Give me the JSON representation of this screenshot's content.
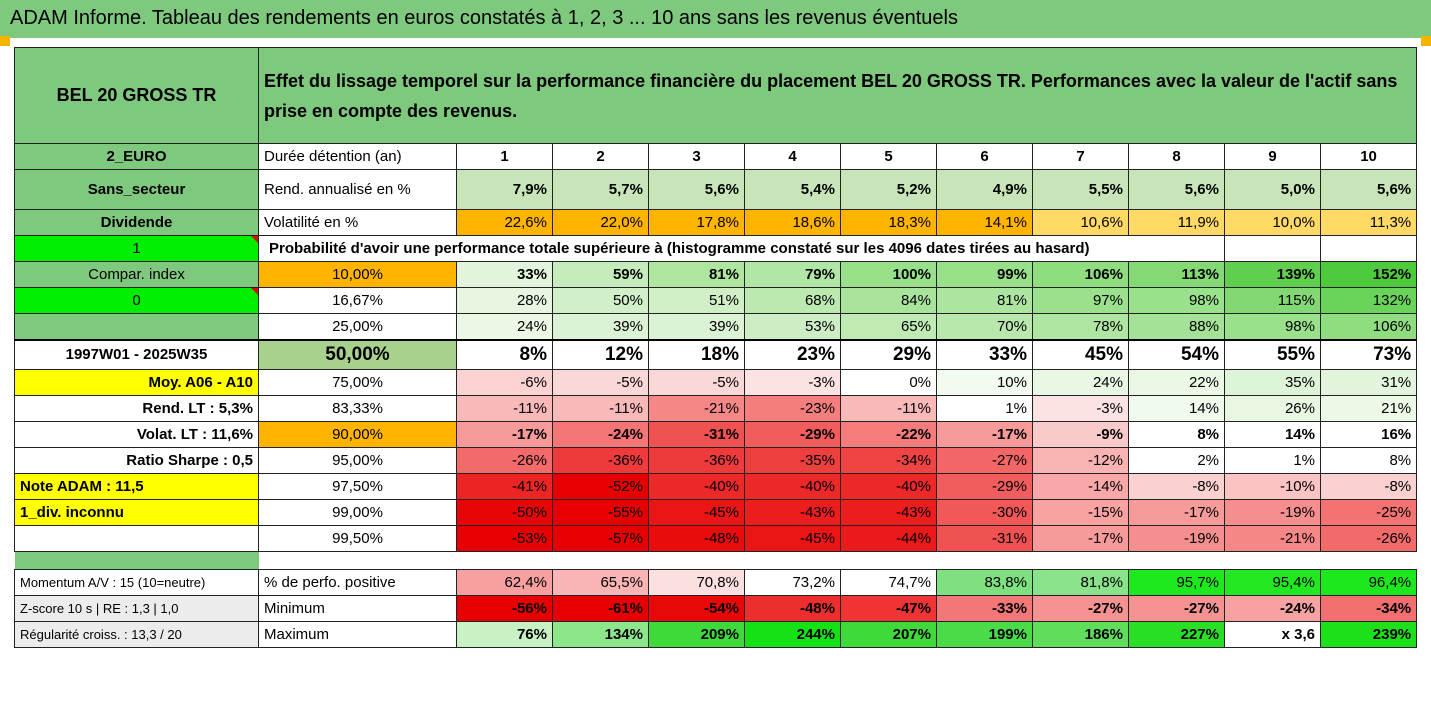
{
  "title": "ADAM Informe. Tableau des rendements en euros constatés à 1, 2, 3 ... 10 ans sans les revenus éventuels",
  "header": {
    "fund": "BEL 20 GROSS TR",
    "description": "Effet du lissage temporel sur la performance financière du placement BEL 20 GROSS TR. Performances avec la valeur de l'actif sans prise en compte des revenus."
  },
  "side": {
    "currency": "2_EURO",
    "sector": "Sans_secteur",
    "dividend": "Dividende",
    "one": "1",
    "compar": "Compar. index",
    "zero": "0",
    "period": "1997W01 - 2025W35",
    "moy": "Moy. A06 - A10",
    "rend_lt": "Rend. LT :   5,3%",
    "volat_lt": "Volat. LT :   11,6%",
    "sharpe": "Ratio Sharpe :   0,5",
    "note": "Note ADAM : 11,5",
    "div": "1_div. inconnu",
    "momentum": "Momentum A/V : 15 (10=neutre)",
    "zscore": "Z-score 10 s  |  RE : 1,3  |  1,0",
    "regularite": "Régularité croiss. : 13,3 / 20"
  },
  "labels": {
    "duree": "Durée détention (an)",
    "rend": "Rend. annualisé en %",
    "volat": "Volatilité en %",
    "proba": "Probabilité d'avoir une performance totale supérieure à (histogramme constaté sur les 4096 dates tirées au hasard)",
    "pos": "% de perfo. positive",
    "min": "Minimum",
    "max": "Maximum"
  },
  "years": [
    "1",
    "2",
    "3",
    "4",
    "5",
    "6",
    "7",
    "8",
    "9",
    "10"
  ],
  "rend": [
    "7,9%",
    "5,7%",
    "5,6%",
    "5,4%",
    "5,2%",
    "4,9%",
    "5,5%",
    "5,6%",
    "5,0%",
    "5,6%"
  ],
  "volat": [
    "22,6%",
    "22,0%",
    "17,8%",
    "18,6%",
    "18,3%",
    "14,1%",
    "10,6%",
    "11,9%",
    "10,0%",
    "11,3%"
  ],
  "volat_colors": [
    "#ffb400",
    "#ffb400",
    "#ffb400",
    "#ffb400",
    "#ffb400",
    "#ffb400",
    "#ffd966",
    "#ffd966",
    "#ffd966",
    "#ffd966"
  ],
  "percentiles": [
    {
      "pct": "10,00%",
      "vals": [
        "33%",
        "59%",
        "81%",
        "79%",
        "100%",
        "99%",
        "106%",
        "113%",
        "139%",
        "152%"
      ],
      "colors": [
        "#e2f5dc",
        "#c6ecbc",
        "#aee6a0",
        "#b1e7a4",
        "#98e08a",
        "#99e08b",
        "#8fdd7f",
        "#84d974",
        "#60cf4e",
        "#4ecb3c"
      ]
    },
    {
      "pct": "16,67%",
      "vals": [
        "28%",
        "50%",
        "51%",
        "68%",
        "84%",
        "81%",
        "97%",
        "98%",
        "115%",
        "132%"
      ],
      "colors": [
        "#e6f6e0",
        "#d1efc8",
        "#d0efc7",
        "#bbe9af",
        "#a8e49b",
        "#ace59f",
        "#9be18d",
        "#9ae18c",
        "#82d872",
        "#6ad35a"
      ]
    },
    {
      "pct": "25,00%",
      "vals": [
        "24%",
        "39%",
        "39%",
        "53%",
        "65%",
        "70%",
        "78%",
        "88%",
        "98%",
        "106%"
      ],
      "colors": [
        "#eaf8e5",
        "#dbf3d4",
        "#dbf3d4",
        "#cdeec4",
        "#bfeab3",
        "#b8e8ab",
        "#afe6a2",
        "#a4e397",
        "#9ae18c",
        "#8fdd7f"
      ]
    },
    {
      "pct": "50,00%",
      "vals": [
        "8%",
        "12%",
        "18%",
        "23%",
        "29%",
        "33%",
        "45%",
        "54%",
        "55%",
        "73%"
      ],
      "colors": [
        "#ffffff",
        "#ffffff",
        "#ffffff",
        "#ffffff",
        "#ffffff",
        "#ffffff",
        "#ffffff",
        "#ffffff",
        "#ffffff",
        "#ffffff"
      ]
    },
    {
      "pct": "75,00%",
      "vals": [
        "-6%",
        "-5%",
        "-5%",
        "-3%",
        "0%",
        "10%",
        "24%",
        "22%",
        "35%",
        "31%"
      ],
      "colors": [
        "#fbd3d3",
        "#fbd8d8",
        "#fbd8d8",
        "#fce2e2",
        "#ffffff",
        "#f3fbf0",
        "#e9f8e4",
        "#ebf8e6",
        "#def4d8",
        "#e2f5dc"
      ]
    },
    {
      "pct": "83,33%",
      "vals": [
        "-11%",
        "-11%",
        "-21%",
        "-23%",
        "-11%",
        "1%",
        "-3%",
        "14%",
        "26%",
        "21%"
      ],
      "colors": [
        "#f9b9b9",
        "#f9b9b9",
        "#f58787",
        "#f47d7d",
        "#f9b9b9",
        "#ffffff",
        "#fce2e2",
        "#f0faec",
        "#e7f7e2",
        "#ecf9e7"
      ]
    },
    {
      "pct": "90,00%",
      "vals": [
        "-17%",
        "-24%",
        "-31%",
        "-29%",
        "-22%",
        "-17%",
        "-9%",
        "8%",
        "14%",
        "16%"
      ],
      "colors": [
        "#f69a9a",
        "#f37575",
        "#f05252",
        "#f15d5d",
        "#f47c7c",
        "#f69a9a",
        "#facaca",
        "#ffffff",
        "#ffffff",
        "#ffffff"
      ]
    },
    {
      "pct": "95,00%",
      "vals": [
        "-26%",
        "-36%",
        "-36%",
        "-35%",
        "-34%",
        "-27%",
        "-12%",
        "2%",
        "1%",
        "8%"
      ],
      "colors": [
        "#f26a6a",
        "#ee3a3a",
        "#ee3a3a",
        "#ee3f3f",
        "#ef4444",
        "#f26666",
        "#f9b3b3",
        "#ffffff",
        "#ffffff",
        "#ffffff"
      ]
    },
    {
      "pct": "97,50%",
      "vals": [
        "-41%",
        "-52%",
        "-40%",
        "-40%",
        "-40%",
        "-29%",
        "-14%",
        "-8%",
        "-10%",
        "-8%"
      ],
      "colors": [
        "#ec2424",
        "#e70000",
        "#ec2828",
        "#ec2828",
        "#ec2828",
        "#f15d5d",
        "#f8a8a8",
        "#fbd0d0",
        "#fac4c4",
        "#fbd0d0"
      ]
    },
    {
      "pct": "99,00%",
      "vals": [
        "-50%",
        "-55%",
        "-45%",
        "-43%",
        "-43%",
        "-30%",
        "-15%",
        "-17%",
        "-19%",
        "-25%"
      ],
      "colors": [
        "#e80505",
        "#e70000",
        "#ea1515",
        "#eb1d1d",
        "#eb1d1d",
        "#f15858",
        "#f8a2a2",
        "#f69a9a",
        "#f58e8e",
        "#f37272"
      ]
    },
    {
      "pct": "99,50%",
      "vals": [
        "-53%",
        "-57%",
        "-48%",
        "-45%",
        "-44%",
        "-31%",
        "-17%",
        "-19%",
        "-21%",
        "-26%"
      ],
      "colors": [
        "#e70000",
        "#e70000",
        "#e90c0c",
        "#ea1515",
        "#ea1a1a",
        "#f05252",
        "#f69a9a",
        "#f58e8e",
        "#f58787",
        "#f26a6a"
      ]
    }
  ],
  "pos": [
    "62,4%",
    "65,5%",
    "70,8%",
    "73,2%",
    "74,7%",
    "83,8%",
    "81,8%",
    "95,7%",
    "95,4%",
    "96,4%"
  ],
  "pos_colors": [
    "#f8a0a0",
    "#f9b5b5",
    "#fce0e0",
    "#ffffff",
    "#ffffff",
    "#7ee07e",
    "#8ae38a",
    "#1ee81e",
    "#22e822",
    "#1de81d"
  ],
  "min": [
    "-56%",
    "-61%",
    "-54%",
    "-48%",
    "-47%",
    "-33%",
    "-27%",
    "-27%",
    "-24%",
    "-34%"
  ],
  "min_colors": [
    "#e70000",
    "#e70000",
    "#e80808",
    "#ed2e2e",
    "#ee3434",
    "#f37777",
    "#f59393",
    "#f59393",
    "#f6a2a2",
    "#f26f6f"
  ],
  "max": [
    "76%",
    "134%",
    "209%",
    "244%",
    "207%",
    "199%",
    "186%",
    "227%",
    "x 3,6",
    "239%"
  ],
  "max_colors": [
    "#c9f2c4",
    "#8ee68a",
    "#3ed93a",
    "#14e214",
    "#40d93c",
    "#4cdb48",
    "#5fdd5b",
    "#2ade26",
    "#ffffff",
    "#1ee01a"
  ]
}
